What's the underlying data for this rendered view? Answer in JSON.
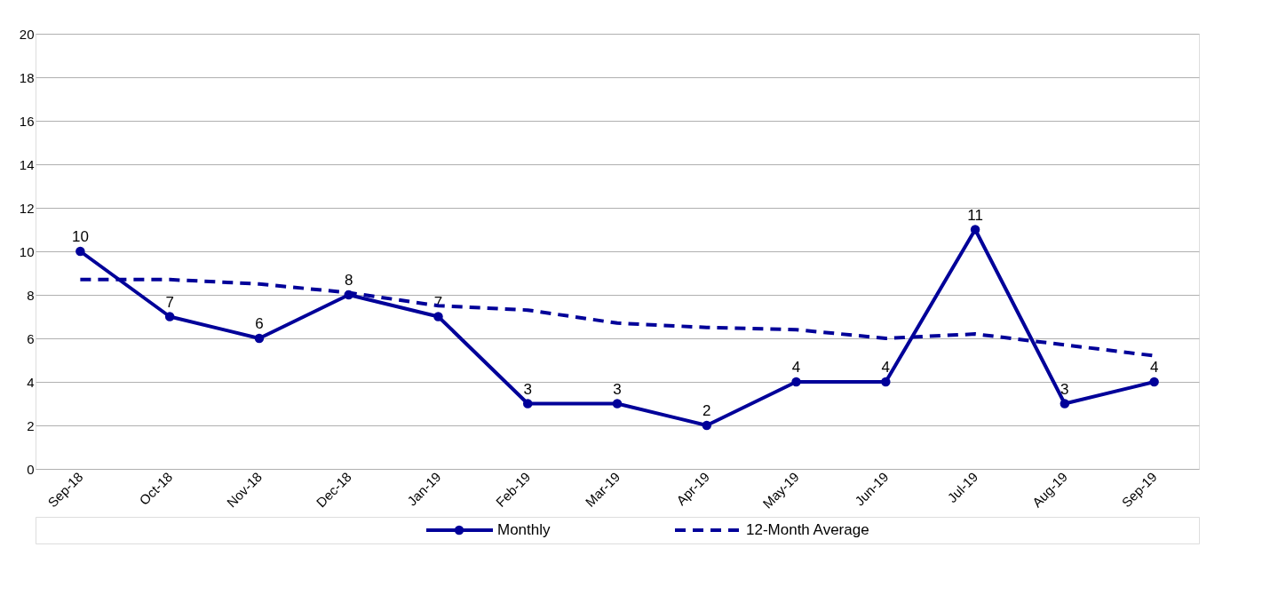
{
  "chart_data": {
    "type": "line",
    "categories": [
      "Sep-18",
      "Oct-18",
      "Nov-18",
      "Dec-18",
      "Jan-19",
      "Feb-19",
      "Mar-19",
      "Apr-19",
      "May-19",
      "Jun-19",
      "Jul-19",
      "Aug-19",
      "Sep-19"
    ],
    "series": [
      {
        "name": "Monthly",
        "color": "#000099",
        "values": [
          10,
          7,
          6,
          8,
          7,
          3,
          3,
          2,
          4,
          4,
          11,
          3,
          4
        ],
        "marker": "circle",
        "line_style": "solid",
        "data_labels": true
      },
      {
        "name": "12-Month Average",
        "color": "#000099",
        "values": [
          8.7,
          8.7,
          8.5,
          8.1,
          7.5,
          7.3,
          6.7,
          6.5,
          6.4,
          6.0,
          6.2,
          5.7,
          5.2
        ],
        "marker": "none",
        "line_style": "dashed"
      }
    ],
    "ylim": [
      0,
      20
    ],
    "yticks": [
      0,
      2,
      4,
      6,
      8,
      10,
      12,
      14,
      16,
      18,
      20
    ],
    "grid": "y",
    "legend": "bottom"
  }
}
